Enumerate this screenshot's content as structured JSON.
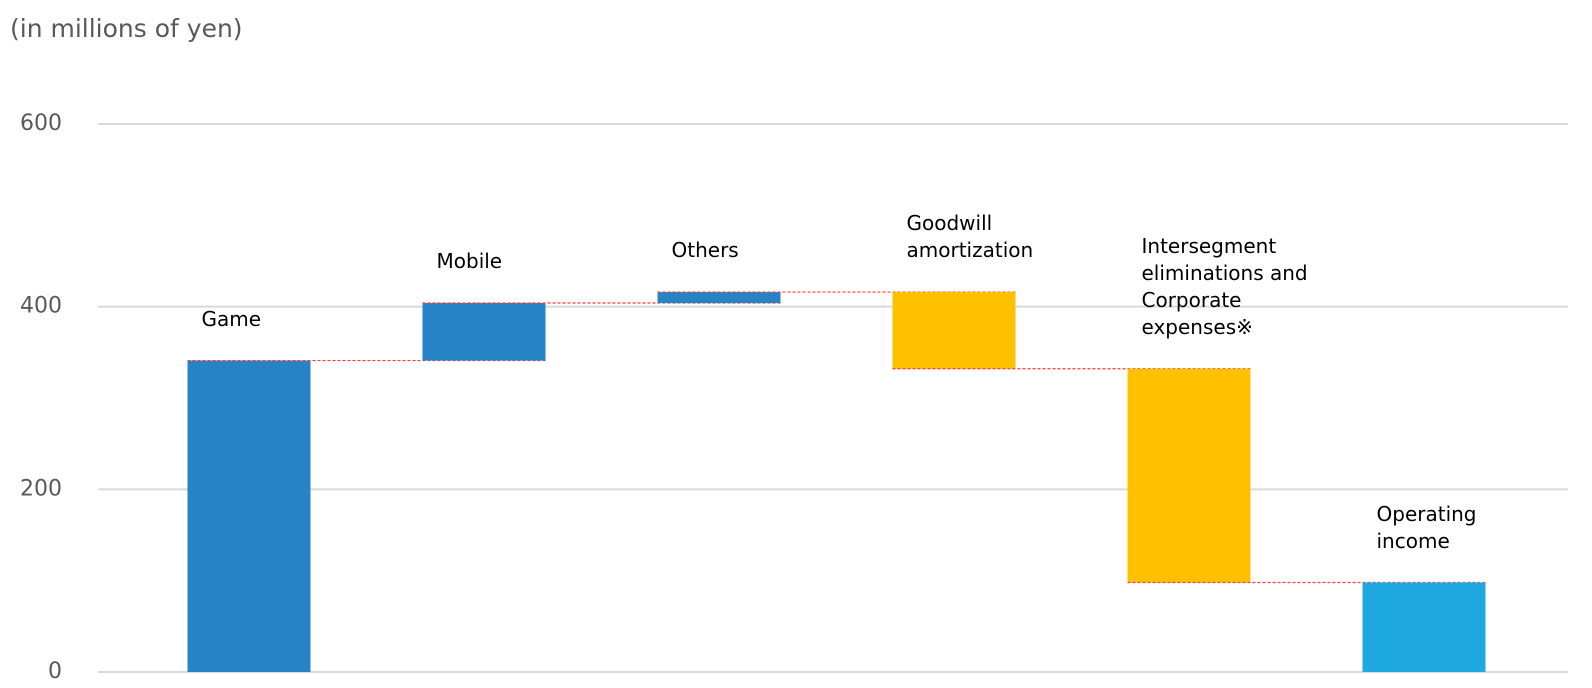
{
  "chart_data": {
    "type": "waterfall",
    "title": "(in millions of yen)",
    "categories": [
      "Game",
      "Mobile",
      "Others",
      "Goodwill\namortization",
      "Intersegment\neliminations and\nCorporate\nexpenses※",
      "Operating\nincome"
    ],
    "values": [
      341,
      63,
      12,
      -84,
      -234,
      98
    ],
    "measure": [
      "absolute",
      "relative",
      "relative",
      "relative",
      "relative",
      "total"
    ],
    "colors": [
      "#2683c6",
      "#2683c6",
      "#2683c6",
      "#ffc000",
      "#ffc000",
      "#1fa9e1"
    ],
    "connector_color": "#ff3b3b",
    "ylim": [
      0,
      600
    ],
    "yticks": [
      0,
      200,
      400,
      600
    ],
    "grid": true
  }
}
